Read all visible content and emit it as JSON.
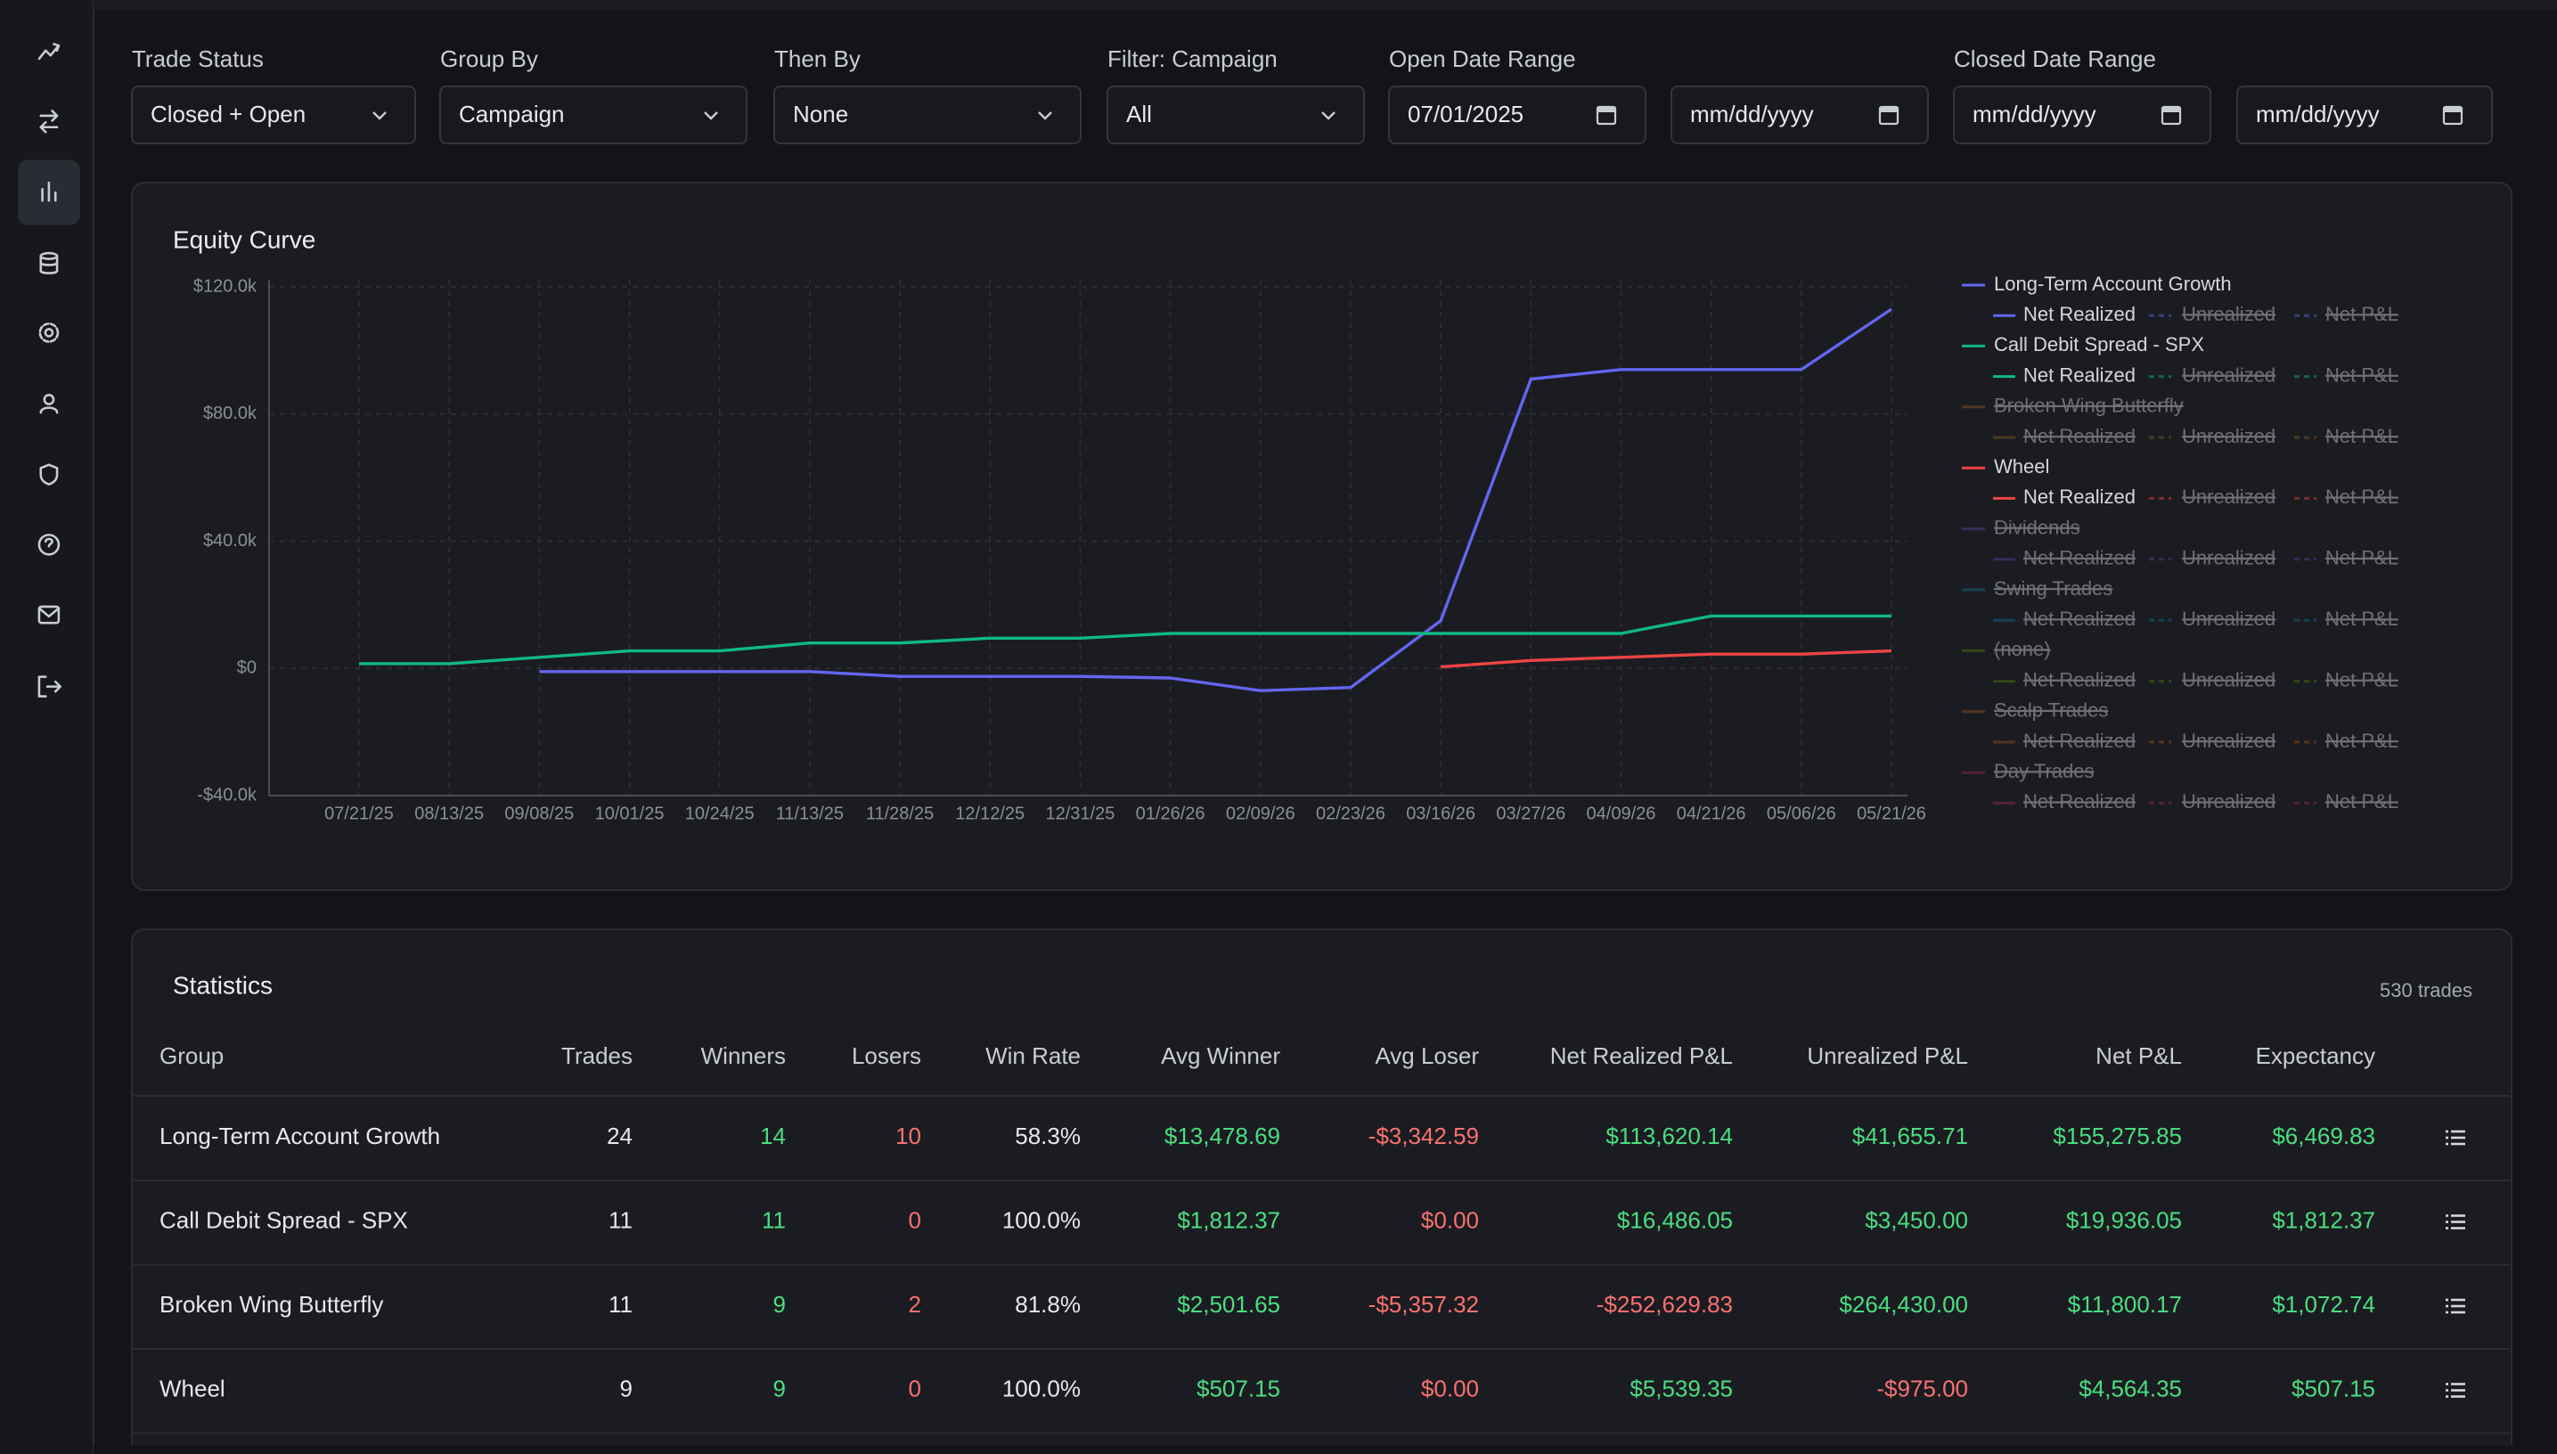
{
  "sidebar": {
    "active": 2
  },
  "filters": [
    {
      "label": "Trade Status",
      "kind": "select",
      "controls": [
        "Closed + Open"
      ]
    },
    {
      "label": "Group By",
      "kind": "select",
      "controls": [
        "Campaign"
      ]
    },
    {
      "label": "Then By",
      "kind": "select",
      "controls": [
        "None"
      ]
    },
    {
      "label": "Filter: Campaign",
      "kind": "select",
      "controls": [
        "All"
      ]
    },
    {
      "label": "Open Date Range",
      "kind": "date",
      "controls": [
        "07/01/2025",
        "mm/dd/yyyy"
      ]
    },
    {
      "label": "Closed Date Range",
      "kind": "date",
      "controls": [
        "mm/dd/yyyy",
        "mm/dd/yyyy"
      ]
    }
  ],
  "equity_curve": {
    "title": "Equity Curve",
    "categories": [
      "07/21/25",
      "08/13/25",
      "09/08/25",
      "10/01/25",
      "10/24/25",
      "11/13/25",
      "11/28/25",
      "12/12/25",
      "12/31/25",
      "01/26/26",
      "02/09/26",
      "02/23/26",
      "03/16/26",
      "03/27/26",
      "04/09/26",
      "04/21/26",
      "05/06/26",
      "05/21/26"
    ],
    "ylim": [
      -40000,
      120000
    ],
    "yticks": [
      {
        "value": -40000,
        "label": "-$40.0k"
      },
      {
        "value": 0,
        "label": "$0"
      },
      {
        "value": 40000,
        "label": "$40.0k"
      },
      {
        "value": 80000,
        "label": "$80.0k"
      },
      {
        "value": 120000,
        "label": "$120.0k"
      }
    ],
    "grid": true,
    "line_types": [
      "Net Realized",
      "Unrealized",
      "Net P&L"
    ],
    "line_visible": [
      true,
      false,
      false
    ],
    "groups": [
      {
        "name": "Long-Term Account Growth",
        "color": "#6366f1",
        "visible": true,
        "values": [
          null,
          null,
          -1000,
          -1000,
          -1000,
          -1000,
          -2500,
          -2500,
          -2500,
          -3000,
          -7000,
          -6000,
          15000,
          91000,
          94000,
          94000,
          94000,
          113000
        ]
      },
      {
        "name": "Call Debit Spread - SPX",
        "color": "#10b981",
        "visible": true,
        "values": [
          1500,
          1500,
          3500,
          5500,
          5500,
          8000,
          8000,
          9500,
          9500,
          11000,
          11000,
          11000,
          11000,
          11000,
          11000,
          16500,
          16500,
          16500
        ]
      },
      {
        "name": "Broken Wing Butterfly",
        "color": "#8b5a2b",
        "visible": false
      },
      {
        "name": "Wheel",
        "color": "#ef4444",
        "visible": true,
        "values": [
          null,
          null,
          null,
          null,
          null,
          null,
          null,
          null,
          null,
          null,
          null,
          null,
          500,
          2500,
          3500,
          4500,
          4500,
          5500
        ]
      },
      {
        "name": "Dividends",
        "color": "#4f46a5",
        "visible": false
      },
      {
        "name": "Swing Trades",
        "color": "#0e7490",
        "visible": false
      },
      {
        "name": "(none)",
        "color": "#4d7c0f",
        "visible": false
      },
      {
        "name": "Scalp Trades",
        "color": "#9a4f1a",
        "visible": false
      },
      {
        "name": "Day Trades",
        "color": "#9f2d4a",
        "visible": false
      }
    ]
  },
  "statistics": {
    "title": "Statistics",
    "count_label": "530 trades",
    "columns": [
      "Group",
      "Trades",
      "Winners",
      "Losers",
      "Win Rate",
      "Avg Winner",
      "Avg Loser",
      "Net Realized P&L",
      "Unrealized P&L",
      "Net P&L",
      "Expectancy"
    ],
    "tones": [
      "plain",
      "plain",
      "pos",
      "neg",
      "plain",
      "sign",
      "neg",
      "sign",
      "sign",
      "sign",
      "sign"
    ],
    "rows": [
      [
        "Long-Term Account Growth",
        24,
        14,
        10,
        "58.3%",
        "$13,478.69",
        "-$3,342.59",
        "$113,620.14",
        "$41,655.71",
        "$155,275.85",
        "$6,469.83"
      ],
      [
        "Call Debit Spread - SPX",
        11,
        11,
        0,
        "100.0%",
        "$1,812.37",
        "$0.00",
        "$16,486.05",
        "$3,450.00",
        "$19,936.05",
        "$1,812.37"
      ],
      [
        "Broken Wing Butterfly",
        11,
        9,
        2,
        "81.8%",
        "$2,501.65",
        "-$5,357.32",
        "-$252,629.83",
        "$264,430.00",
        "$11,800.17",
        "$1,072.74"
      ],
      [
        "Wheel",
        9,
        9,
        0,
        "100.0%",
        "$507.15",
        "$0.00",
        "$5,539.35",
        "-$975.00",
        "$4,564.35",
        "$507.15"
      ]
    ]
  }
}
